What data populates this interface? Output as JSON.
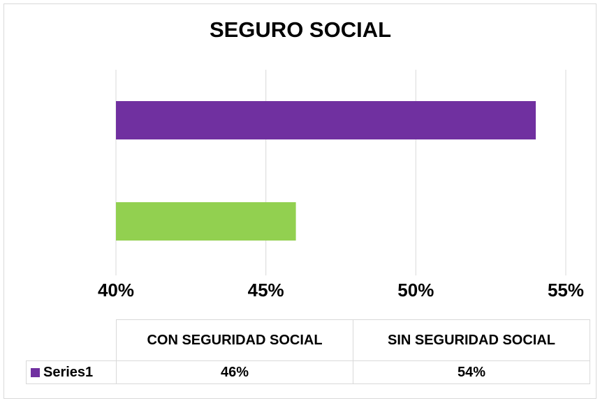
{
  "chart_data": {
    "type": "hbar",
    "title": "SEGURO SOCIAL",
    "categories": [
      "CON SEGURIDAD SOCIAL",
      "SIN SEGURIDAD SOCIAL"
    ],
    "series": [
      {
        "name": "Series1",
        "color": "#7030a0",
        "point_colors": [
          "#92d050",
          "#7030a0"
        ],
        "values": [
          46,
          54
        ],
        "value_labels": [
          "46%",
          "54%"
        ]
      }
    ],
    "xlim": [
      40,
      55
    ],
    "xticks": [
      {
        "value": 40,
        "label": "40%"
      },
      {
        "value": 45,
        "label": "45%"
      },
      {
        "value": 50,
        "label": "50%"
      },
      {
        "value": 55,
        "label": "55%"
      }
    ],
    "grid": true,
    "data_table": true
  }
}
